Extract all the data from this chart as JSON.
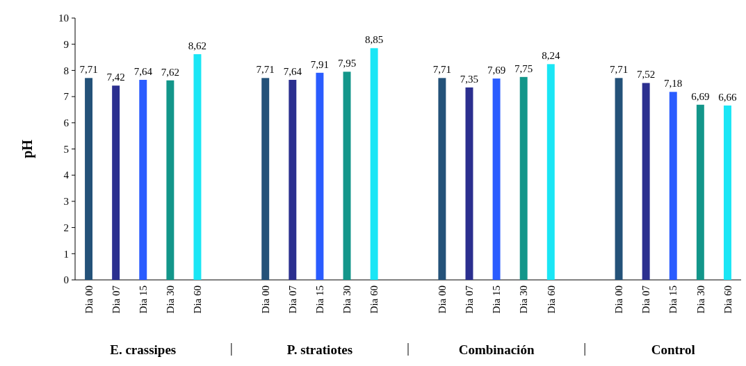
{
  "chart_data": {
    "type": "bar",
    "ylabel": "pH",
    "categories": [
      "Dia 00",
      "Dia 07",
      "Dia 15",
      "Dia 30",
      "Dia 60",
      "Dia 00",
      "Dia 07",
      "Dia 15",
      "Dia 30",
      "Dia 60",
      "Dia 00",
      "Dia 07",
      "Dia 15",
      "Dia 30",
      "Dia 60",
      "Dia 00",
      "Dia 07",
      "Dia 15",
      "Dia 30",
      "Dia 60"
    ],
    "values": [
      7.71,
      7.42,
      7.64,
      7.62,
      8.62,
      7.71,
      7.64,
      7.91,
      7.95,
      8.85,
      7.71,
      7.35,
      7.69,
      7.75,
      8.24,
      7.71,
      7.52,
      7.18,
      6.69,
      6.66
    ],
    "value_labels": [
      "7,71",
      "7,42",
      "7,64",
      "7,62",
      "8,62",
      "7,71",
      "7,64",
      "7,91",
      "7,95",
      "8,85",
      "7,71",
      "7,35",
      "7,69",
      "7,75",
      "8,24",
      "7,71",
      "7,52",
      "7,18",
      "6,69",
      "6,66"
    ],
    "colors": [
      "#245279",
      "#2b2f8f",
      "#2a5cff",
      "#13968a",
      "#1ae6f5",
      "#245279",
      "#2b2f8f",
      "#2a5cff",
      "#13968a",
      "#1ae6f5",
      "#245279",
      "#2b2f8f",
      "#2a5cff",
      "#13968a",
      "#1ae6f5",
      "#245279",
      "#2b2f8f",
      "#2a5cff",
      "#13968a",
      "#1ae6f5"
    ],
    "ylim": [
      0,
      10
    ],
    "yticks": [
      0,
      1,
      2,
      3,
      4,
      5,
      6,
      7,
      8,
      9,
      10
    ],
    "annotations": [
      "E. crassipes",
      "P. stratiotes",
      "Combinación",
      "Control"
    ]
  }
}
